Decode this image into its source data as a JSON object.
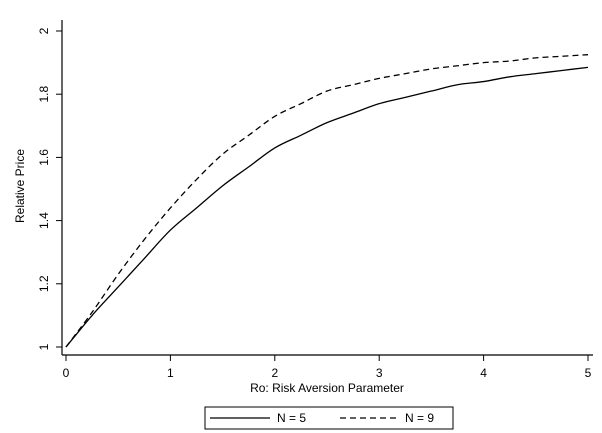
{
  "chart_data": {
    "type": "line",
    "title": "",
    "xlabel": "Ro: Risk Aversion Parameter",
    "ylabel": "Relative Price",
    "xlim": [
      0,
      5
    ],
    "ylim": [
      1,
      2
    ],
    "xticks": [
      0,
      1,
      2,
      3,
      4,
      5
    ],
    "yticks": [
      1,
      1.2,
      1.4,
      1.6,
      1.8,
      2
    ],
    "xtick_labels": [
      "0",
      "1",
      "2",
      "3",
      "4",
      "5"
    ],
    "ytick_labels": [
      "1",
      "1.2",
      "1.4",
      "1.6",
      "1.8",
      "2"
    ],
    "grid": false,
    "legend_position": "bottom",
    "series": [
      {
        "name": "N = 5",
        "style": "solid",
        "x": [
          0,
          0.25,
          0.5,
          0.75,
          1,
          1.25,
          1.5,
          1.75,
          2,
          2.25,
          2.5,
          2.75,
          3,
          3.25,
          3.5,
          3.75,
          4,
          4.25,
          4.5,
          4.75,
          5
        ],
        "y": [
          1.0,
          1.1,
          1.19,
          1.28,
          1.37,
          1.44,
          1.51,
          1.57,
          1.63,
          1.67,
          1.71,
          1.74,
          1.77,
          1.79,
          1.81,
          1.83,
          1.84,
          1.855,
          1.865,
          1.875,
          1.885
        ]
      },
      {
        "name": "N = 9",
        "style": "dashed",
        "x": [
          0,
          0.25,
          0.5,
          0.75,
          1,
          1.25,
          1.5,
          1.75,
          2,
          2.25,
          2.5,
          2.75,
          3,
          3.25,
          3.5,
          3.75,
          4,
          4.25,
          4.5,
          4.75,
          5
        ],
        "y": [
          1.0,
          1.11,
          1.23,
          1.34,
          1.44,
          1.53,
          1.61,
          1.67,
          1.73,
          1.77,
          1.81,
          1.83,
          1.85,
          1.865,
          1.88,
          1.89,
          1.9,
          1.905,
          1.915,
          1.92,
          1.925
        ]
      }
    ]
  }
}
